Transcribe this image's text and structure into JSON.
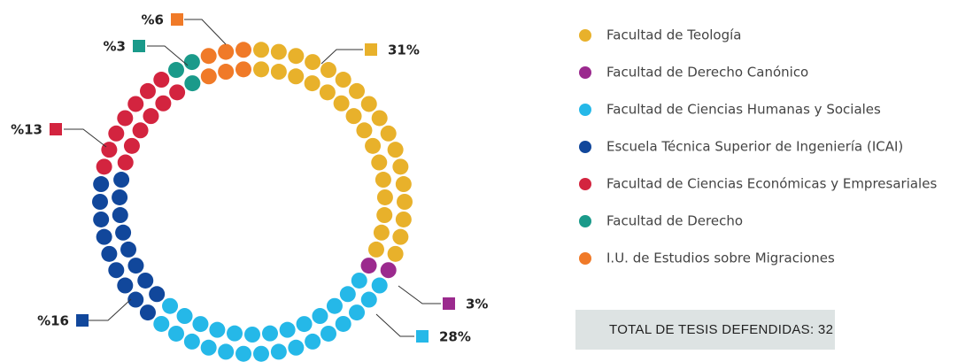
{
  "chart_data": {
    "type": "pie",
    "categories": [
      "Facultad de Teología",
      "Facultad de Derecho Canónico",
      "Facultad de Ciencias Humanas y Sociales",
      "Escuela Técnica Superior de Ingeniería (ICAI)",
      "Facultad de Ciencias Económicas y Empresariales",
      "Facultad de Derecho",
      "I.U. de Estudios sobre Migraciones"
    ],
    "values": [
      31,
      3,
      28,
      16,
      13,
      3,
      6
    ],
    "value_labels": [
      "31%",
      "3%",
      "28%",
      "%16",
      "%13",
      "%3",
      "%6"
    ],
    "colors": [
      "#e8b12b",
      "#9b2a8e",
      "#25b8e8",
      "#11479b",
      "#d3243f",
      "#1a9a8a",
      "#f07a28"
    ],
    "total_label": "TOTAL DE TESIS DEFENDIDAS: 32"
  }
}
